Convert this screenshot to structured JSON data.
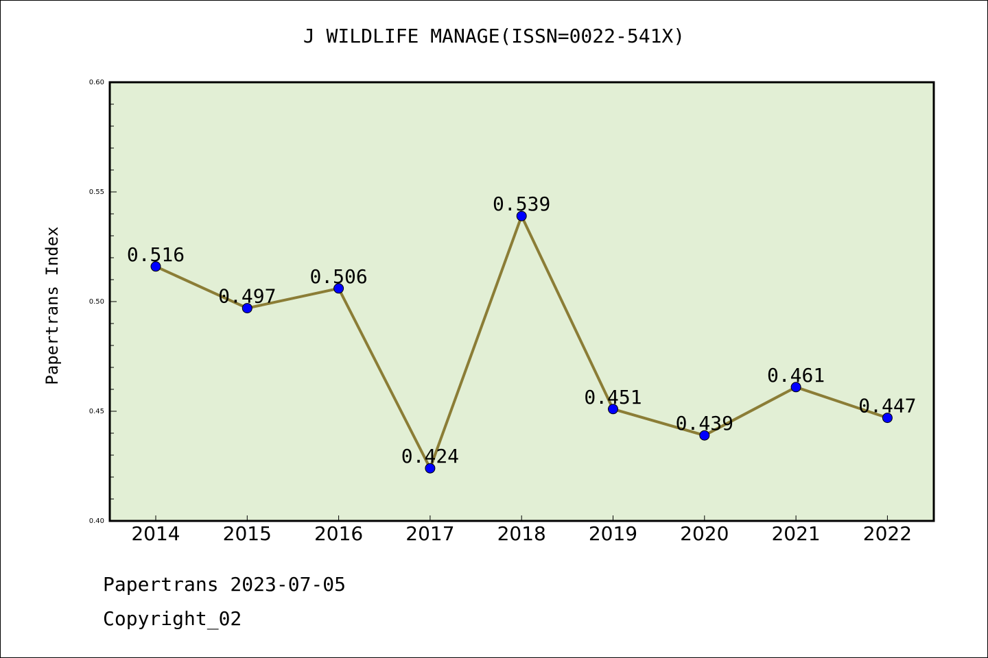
{
  "chart_data": {
    "type": "line",
    "title": "J WILDLIFE MANAGE(ISSN=0022-541X)",
    "ylabel": "Papertrans Index",
    "xlabel": "",
    "categories": [
      "2014",
      "2015",
      "2016",
      "2017",
      "2018",
      "2019",
      "2020",
      "2021",
      "2022"
    ],
    "values": [
      0.516,
      0.497,
      0.506,
      0.424,
      0.539,
      0.451,
      0.439,
      0.461,
      0.447
    ],
    "data_labels": [
      "0.516",
      "0.497",
      "0.506",
      "0.424",
      "0.539",
      "0.451",
      "0.439",
      "0.461",
      "0.447"
    ],
    "ylim": [
      0.4,
      0.6
    ],
    "yticks": [
      0.4,
      0.45,
      0.5,
      0.55,
      0.6
    ],
    "ytick_labels": [
      "0.40",
      "0.45",
      "0.50",
      "0.55",
      "0.60"
    ],
    "grid": false,
    "colors": {
      "plot_background": "#e2efd5",
      "line": "#8b7d36",
      "marker": "#0000ff"
    }
  },
  "footer": {
    "date_line": "Papertrans 2023-07-05",
    "copyright": "Copyright_02"
  }
}
